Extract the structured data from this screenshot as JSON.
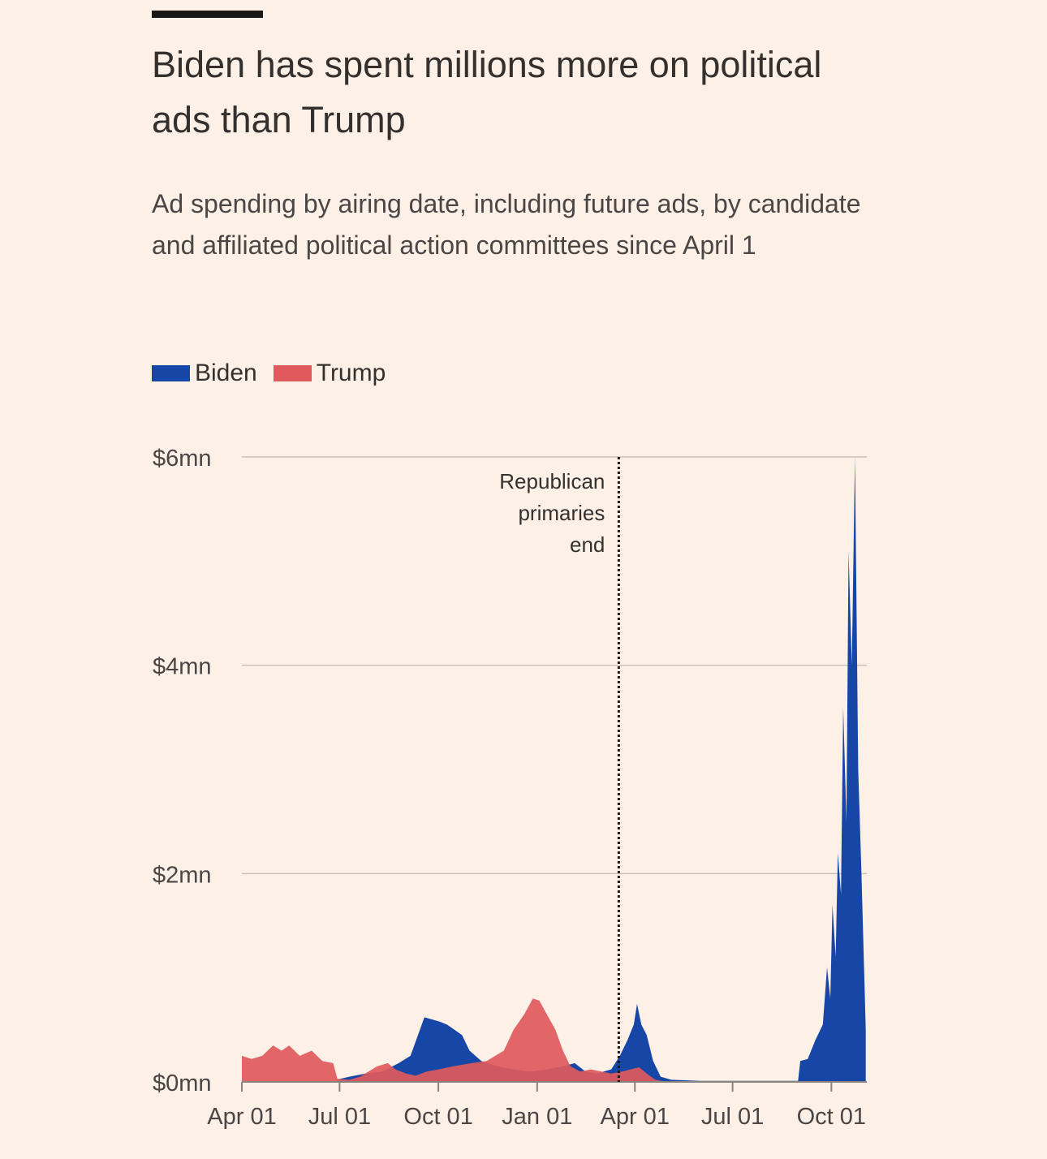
{
  "header": {
    "title": "Biden has spent millions more on political ads than Trump",
    "subtitle": "Ad spending by airing date, including future ads, by candidate and affiliated political action committees since April 1"
  },
  "colors": {
    "biden": "#1747a6",
    "trump": "#e05a5d",
    "background": "#fdf1e7",
    "grid": "#c8c0b8"
  },
  "chart_data": {
    "type": "area",
    "title": "Biden has spent millions more on political ads than Trump",
    "subtitle": "Ad spending by airing date, including future ads, by candidate and affiliated political action committees since April 1",
    "x_tick_labels": [
      "Apr 01",
      "Jul 01",
      "Oct 01",
      "Jan 01",
      "Apr 01",
      "Jul 01",
      "Oct 01"
    ],
    "x_tick_dates": [
      "2019-04-01",
      "2019-07-01",
      "2019-10-01",
      "2020-01-01",
      "2020-04-01",
      "2020-07-01",
      "2020-10-01"
    ],
    "x_range": [
      "2019-04-01",
      "2020-11-03"
    ],
    "y_tick_labels": [
      "$0mn",
      "$2mn",
      "$4mn",
      "$6mn"
    ],
    "y_ticks": [
      0,
      2,
      4,
      6
    ],
    "ylim": [
      0,
      6
    ],
    "y_unit": "$mn",
    "grid": true,
    "legend_position": "top-left",
    "annotation": {
      "date": "2020-03-17",
      "lines": [
        "Republican",
        "primaries",
        "end"
      ]
    },
    "series": [
      {
        "name": "Biden",
        "color": "#1747a6",
        "points": [
          [
            "2019-06-28",
            0.02
          ],
          [
            "2019-07-10",
            0.05
          ],
          [
            "2019-07-25",
            0.08
          ],
          [
            "2019-08-10",
            0.1
          ],
          [
            "2019-08-25",
            0.18
          ],
          [
            "2019-09-05",
            0.25
          ],
          [
            "2019-09-12",
            0.45
          ],
          [
            "2019-09-18",
            0.62
          ],
          [
            "2019-09-25",
            0.6
          ],
          [
            "2019-10-02",
            0.58
          ],
          [
            "2019-10-09",
            0.55
          ],
          [
            "2019-10-16",
            0.5
          ],
          [
            "2019-10-23",
            0.45
          ],
          [
            "2019-10-30",
            0.3
          ],
          [
            "2019-11-10",
            0.2
          ],
          [
            "2019-11-25",
            0.15
          ],
          [
            "2019-12-10",
            0.12
          ],
          [
            "2019-12-25",
            0.1
          ],
          [
            "2020-01-10",
            0.12
          ],
          [
            "2020-01-25",
            0.15
          ],
          [
            "2020-02-05",
            0.18
          ],
          [
            "2020-02-15",
            0.1
          ],
          [
            "2020-02-25",
            0.08
          ],
          [
            "2020-03-10",
            0.12
          ],
          [
            "2020-03-18",
            0.25
          ],
          [
            "2020-03-25",
            0.4
          ],
          [
            "2020-03-31",
            0.55
          ],
          [
            "2020-04-03",
            0.75
          ],
          [
            "2020-04-07",
            0.55
          ],
          [
            "2020-04-12",
            0.45
          ],
          [
            "2020-04-18",
            0.2
          ],
          [
            "2020-04-25",
            0.05
          ],
          [
            "2020-05-05",
            0.02
          ],
          [
            "2020-06-01",
            0.01
          ],
          [
            "2020-07-01",
            0.01
          ],
          [
            "2020-08-01",
            0.01
          ],
          [
            "2020-08-31",
            0.01
          ],
          [
            "2020-09-02",
            0.2
          ],
          [
            "2020-09-09",
            0.22
          ],
          [
            "2020-09-16",
            0.4
          ],
          [
            "2020-09-23",
            0.55
          ],
          [
            "2020-09-27",
            1.1
          ],
          [
            "2020-09-30",
            0.8
          ],
          [
            "2020-10-02",
            1.7
          ],
          [
            "2020-10-05",
            1.2
          ],
          [
            "2020-10-07",
            2.2
          ],
          [
            "2020-10-10",
            1.8
          ],
          [
            "2020-10-12",
            3.6
          ],
          [
            "2020-10-15",
            2.5
          ],
          [
            "2020-10-17",
            5.1
          ],
          [
            "2020-10-20",
            4.0
          ],
          [
            "2020-10-23",
            6.0
          ],
          [
            "2020-10-26",
            3.0
          ],
          [
            "2020-10-29",
            2.0
          ],
          [
            "2020-11-02",
            0.5
          ]
        ]
      },
      {
        "name": "Trump",
        "color": "#e05a5d",
        "points": [
          [
            "2019-04-01",
            0.25
          ],
          [
            "2019-04-10",
            0.22
          ],
          [
            "2019-04-20",
            0.25
          ],
          [
            "2019-04-30",
            0.35
          ],
          [
            "2019-05-08",
            0.3
          ],
          [
            "2019-05-15",
            0.35
          ],
          [
            "2019-05-25",
            0.25
          ],
          [
            "2019-06-05",
            0.3
          ],
          [
            "2019-06-15",
            0.2
          ],
          [
            "2019-06-25",
            0.18
          ],
          [
            "2019-06-29",
            0.03
          ],
          [
            "2019-07-10",
            0.02
          ],
          [
            "2019-07-20",
            0.05
          ],
          [
            "2019-07-28",
            0.1
          ],
          [
            "2019-08-05",
            0.15
          ],
          [
            "2019-08-15",
            0.18
          ],
          [
            "2019-08-22",
            0.12
          ],
          [
            "2019-09-01",
            0.08
          ],
          [
            "2019-09-10",
            0.06
          ],
          [
            "2019-09-20",
            0.1
          ],
          [
            "2019-10-01",
            0.12
          ],
          [
            "2019-10-15",
            0.15
          ],
          [
            "2019-11-01",
            0.18
          ],
          [
            "2019-11-15",
            0.2
          ],
          [
            "2019-12-01",
            0.3
          ],
          [
            "2019-12-10",
            0.5
          ],
          [
            "2019-12-20",
            0.65
          ],
          [
            "2019-12-28",
            0.8
          ],
          [
            "2020-01-03",
            0.78
          ],
          [
            "2020-01-10",
            0.65
          ],
          [
            "2020-01-18",
            0.5
          ],
          [
            "2020-01-25",
            0.3
          ],
          [
            "2020-02-01",
            0.15
          ],
          [
            "2020-02-10",
            0.1
          ],
          [
            "2020-02-20",
            0.12
          ],
          [
            "2020-03-01",
            0.1
          ],
          [
            "2020-03-10",
            0.08
          ],
          [
            "2020-03-20",
            0.1
          ],
          [
            "2020-03-28",
            0.12
          ],
          [
            "2020-04-05",
            0.14
          ],
          [
            "2020-04-12",
            0.08
          ],
          [
            "2020-04-20",
            0.02
          ],
          [
            "2020-05-01",
            0.0
          ]
        ]
      }
    ]
  }
}
